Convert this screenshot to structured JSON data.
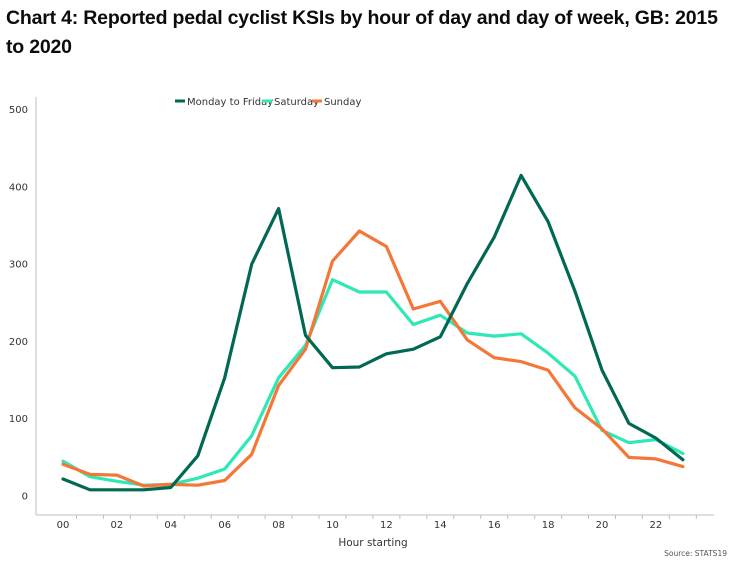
{
  "title": "Chart 4: Reported pedal cyclist KSIs by hour of day and day of week, GB: 2015 to 2020",
  "source": "Source: STATS19",
  "colors": {
    "monday_to_friday": "#006853",
    "saturday": "#2ee8b6",
    "sunday": "#f47738"
  },
  "chart_data": {
    "type": "line",
    "title": "Chart 4: Reported pedal cyclist KSIs by hour of day and day of week, GB: 2015 to 2020",
    "xlabel": "Hour starting",
    "ylabel": "",
    "x": [
      "00",
      "01",
      "02",
      "03",
      "04",
      "05",
      "06",
      "07",
      "08",
      "09",
      "10",
      "11",
      "12",
      "13",
      "14",
      "15",
      "16",
      "17",
      "18",
      "19",
      "20",
      "21",
      "22",
      "23"
    ],
    "x_tick_labels": [
      "00",
      "02",
      "04",
      "06",
      "08",
      "10",
      "12",
      "14",
      "16",
      "18",
      "20",
      "22"
    ],
    "ylim": [
      0,
      500
    ],
    "y_ticks": [
      0,
      100,
      200,
      300,
      400,
      500
    ],
    "grid": false,
    "legend_position": "top",
    "series": [
      {
        "name": "Monday to Friday",
        "color": "#006853",
        "values": [
          22,
          8,
          8,
          8,
          11,
          52,
          153,
          300,
          372,
          208,
          166,
          167,
          184,
          190,
          206,
          275,
          335,
          415,
          355,
          265,
          163,
          94,
          75,
          47
        ]
      },
      {
        "name": "Saturday",
        "color": "#2ee8b6",
        "values": [
          45,
          25,
          19,
          14,
          15,
          23,
          35,
          78,
          153,
          195,
          280,
          264,
          264,
          222,
          234,
          211,
          207,
          210,
          185,
          155,
          85,
          69,
          73,
          55
        ]
      },
      {
        "name": "Sunday",
        "color": "#f47738",
        "values": [
          41,
          28,
          27,
          13,
          15,
          14,
          20,
          54,
          143,
          190,
          304,
          343,
          323,
          242,
          252,
          202,
          179,
          174,
          163,
          114,
          87,
          50,
          48,
          38
        ]
      }
    ]
  }
}
